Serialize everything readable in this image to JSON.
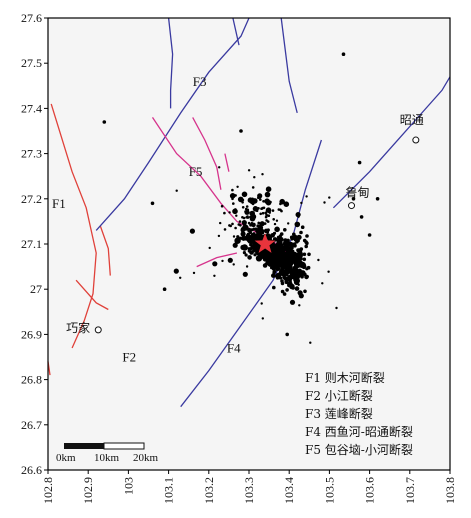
{
  "map": {
    "lon_range": [
      102.8,
      103.8
    ],
    "lat_range": [
      26.6,
      27.6
    ],
    "x_ticks": [
      "102.8",
      "102.9",
      "103",
      "103.1",
      "103.2",
      "103.3",
      "103.4",
      "103.5",
      "103.6",
      "103.7",
      "103.8"
    ],
    "y_ticks": [
      "27.6",
      "27.5",
      "27.4",
      "27.3",
      "27.2",
      "27.1",
      "27",
      "26.9",
      "26.8",
      "26.7",
      "26.6"
    ],
    "background_color": "#f5f5f5",
    "frame_color": "#000000"
  },
  "faults": [
    {
      "id": "F1",
      "color": "#e0413a",
      "lines": [
        [
          [
            102.808,
            27.41
          ],
          [
            102.86,
            27.26
          ],
          [
            102.895,
            27.18
          ],
          [
            102.92,
            27.08
          ],
          [
            102.912,
            26.99
          ],
          [
            102.89,
            26.93
          ],
          [
            102.86,
            26.87
          ]
        ],
        [
          [
            102.93,
            27.14
          ],
          [
            102.95,
            27.09
          ],
          [
            102.955,
            27.03
          ]
        ],
        [
          [
            102.8,
            26.84
          ],
          [
            102.805,
            26.81
          ]
        ]
      ]
    },
    {
      "id": "F2",
      "color": "#e0413a",
      "lines": [
        [
          [
            102.87,
            27.02
          ],
          [
            102.92,
            26.97
          ],
          [
            102.95,
            26.955
          ]
        ]
      ]
    },
    {
      "id": "F3",
      "color": "#3a3aa0",
      "lines": [
        [
          [
            102.92,
            27.13
          ],
          [
            102.99,
            27.2
          ],
          [
            103.05,
            27.28
          ],
          [
            103.13,
            27.39
          ],
          [
            103.2,
            27.48
          ],
          [
            103.28,
            27.56
          ],
          [
            103.3,
            27.6
          ]
        ],
        [
          [
            103.1,
            27.6
          ],
          [
            103.11,
            27.52
          ],
          [
            103.105,
            27.44
          ],
          [
            103.105,
            27.4
          ]
        ],
        [
          [
            103.26,
            27.6
          ],
          [
            103.275,
            27.54
          ]
        ],
        [
          [
            103.38,
            27.6
          ],
          [
            103.4,
            27.46
          ],
          [
            103.42,
            27.39
          ]
        ]
      ]
    },
    {
      "id": "F4",
      "color": "#3a3aa0",
      "lines": [
        [
          [
            103.13,
            26.74
          ],
          [
            103.2,
            26.82
          ],
          [
            103.28,
            26.92
          ],
          [
            103.36,
            27.02
          ],
          [
            103.41,
            27.12
          ],
          [
            103.44,
            27.22
          ],
          [
            103.48,
            27.33
          ]
        ],
        [
          [
            103.51,
            27.18
          ],
          [
            103.6,
            27.26
          ],
          [
            103.7,
            27.36
          ],
          [
            103.78,
            27.44
          ],
          [
            103.8,
            27.47
          ]
        ]
      ]
    },
    {
      "id": "F5",
      "color": "#d6348c",
      "lines": [
        [
          [
            103.06,
            27.38
          ],
          [
            103.12,
            27.3
          ],
          [
            103.18,
            27.25
          ],
          [
            103.23,
            27.19
          ],
          [
            103.27,
            27.15
          ],
          [
            103.33,
            27.12
          ],
          [
            103.37,
            27.1
          ],
          [
            103.42,
            27.06
          ]
        ],
        [
          [
            103.16,
            27.38
          ],
          [
            103.19,
            27.33
          ],
          [
            103.22,
            27.27
          ],
          [
            103.23,
            27.22
          ]
        ],
        [
          [
            103.17,
            27.05
          ],
          [
            103.22,
            27.07
          ],
          [
            103.27,
            27.08
          ]
        ],
        [
          [
            103.24,
            27.3
          ],
          [
            103.25,
            27.26
          ]
        ]
      ]
    }
  ],
  "fault_labels": [
    {
      "text": "F1",
      "lon": 102.81,
      "lat": 27.18
    },
    {
      "text": "F2",
      "lon": 102.985,
      "lat": 26.84
    },
    {
      "text": "F3",
      "lon": 103.16,
      "lat": 27.45
    },
    {
      "text": "F4",
      "lon": 103.245,
      "lat": 26.86
    },
    {
      "text": "F5",
      "lon": 103.15,
      "lat": 27.25
    }
  ],
  "towns": [
    {
      "name": "昭通",
      "lon": 103.715,
      "lat": 27.33,
      "label_lon": 103.675,
      "label_lat": 27.365
    },
    {
      "name": "鲁甸",
      "lon": 103.555,
      "lat": 27.185,
      "label_lon": 103.54,
      "label_lat": 27.205
    },
    {
      "name": "巧家",
      "lon": 102.925,
      "lat": 26.91,
      "label_lon": 102.845,
      "label_lat": 26.905
    }
  ],
  "epicenter": {
    "lon": 103.34,
    "lat": 27.1,
    "color": "#e8343c"
  },
  "scale_bar": {
    "labels": [
      "0km",
      "10km",
      "20km"
    ]
  },
  "legend": [
    "F1 则木河断裂",
    "F2 小江断裂",
    "F3 莲峰断裂",
    "F4 西鱼河-昭通断裂",
    "F5 包谷垴-小河断裂"
  ]
}
